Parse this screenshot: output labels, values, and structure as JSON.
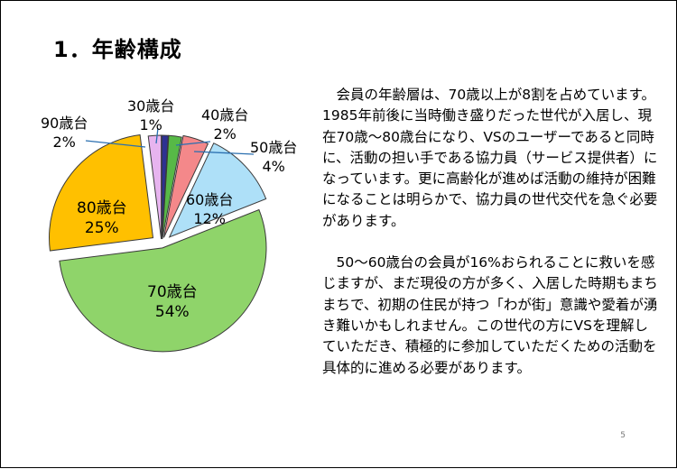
{
  "slide": {
    "title": "1．年齢構成",
    "page_number": "5"
  },
  "chart_data": {
    "type": "pie",
    "slices": [
      {
        "label": "30歳台",
        "value": 1,
        "pct": "1%",
        "color": "#2e3192"
      },
      {
        "label": "40歳台",
        "value": 2,
        "pct": "2%",
        "color": "#57b947"
      },
      {
        "label": "50歳台",
        "value": 4,
        "pct": "4%",
        "color": "#f4888a"
      },
      {
        "label": "60歳台",
        "value": 12,
        "pct": "12%",
        "color": "#aee0f8"
      },
      {
        "label": "70歳台",
        "value": 54,
        "pct": "54%",
        "color": "#8fd46a"
      },
      {
        "label": "80歳台",
        "value": 25,
        "pct": "25%",
        "color": "#ffc000"
      },
      {
        "label": "90歳台",
        "value": 2,
        "pct": "2%",
        "color": "#e7b4ef"
      }
    ]
  },
  "text": {
    "paragraph1": "会員の年齢層は、70歳以上が8割を占めています。1985年前後に当時働き盛りだった世代が入居し、現在70歳～80歳台になり、VSのユーザーであると同時に、活動の担い手である協力員（サービス提供者）になっています。更に高齢化が進めば活動の維持が困難になることは明らかで、協力員の世代交代を急ぐ必要があります。",
    "paragraph2": "50～60歳台の会員が16%おられることに救いを感じますが、まだ現役の方が多く、入居した時期もまちまちで、初期の住民が持つ「わが街」意識や愛着が湧き難いかもしれません。この世代の方にVSを理解していただき、積極的に参加していただくための活動を具体的に進める必要があります。"
  }
}
